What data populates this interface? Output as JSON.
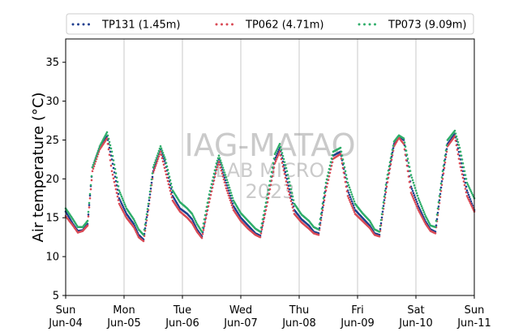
{
  "chart_data": {
    "type": "line",
    "style": "dotted",
    "xlabel": "",
    "ylabel": "Air temperature (°C)",
    "ylim": [
      5,
      38
    ],
    "yticks": [
      5,
      10,
      15,
      20,
      25,
      30,
      35
    ],
    "x_start": "2023-06-04",
    "x_end": "2023-06-11",
    "x_ticks": [
      {
        "day": "Sun",
        "date": "Jun-04"
      },
      {
        "day": "Mon",
        "date": "Jun-05"
      },
      {
        "day": "Tue",
        "date": "Jun-06"
      },
      {
        "day": "Wed",
        "date": "Jun-07"
      },
      {
        "day": "Thu",
        "date": "Jun-08"
      },
      {
        "day": "Fri",
        "date": "Jun-09"
      },
      {
        "day": "Sat",
        "date": "Jun-10"
      },
      {
        "day": "Sun",
        "date": "Jun-11"
      }
    ],
    "grid": "vertical",
    "legend_position": "top",
    "series": [
      {
        "name": "TP131 (1.45m)",
        "color": "#1f3f8f",
        "points": [
          [
            "2023-06-04 00:00",
            15.8
          ],
          [
            "2023-06-04 03:00",
            14.2
          ],
          [
            "2023-06-04 05:00",
            13.3
          ],
          [
            "2023-06-04 07:00",
            13.4
          ],
          [
            "2023-06-04 09:00",
            14.2
          ],
          [
            "2023-06-04 11:00",
            21.5
          ],
          [
            "2023-06-04 14:00",
            24.0
          ],
          [
            "2023-06-04 17:00",
            25.5
          ],
          [
            "2023-06-04 19:00",
            22.5
          ],
          [
            "2023-06-04 22:00",
            17.5
          ],
          [
            "2023-06-05 01:00",
            15.5
          ],
          [
            "2023-06-05 04:00",
            14.2
          ],
          [
            "2023-06-05 06:00",
            12.8
          ],
          [
            "2023-06-05 08:00",
            12.2
          ],
          [
            "2023-06-05 10:00",
            16.5
          ],
          [
            "2023-06-05 12:00",
            21.0
          ],
          [
            "2023-06-05 15:00",
            23.8
          ],
          [
            "2023-06-05 17:00",
            22.0
          ],
          [
            "2023-06-05 20:00",
            17.8
          ],
          [
            "2023-06-05 23:00",
            16.2
          ],
          [
            "2023-06-06 02:00",
            15.5
          ],
          [
            "2023-06-06 04:00",
            14.8
          ],
          [
            "2023-06-06 06:00",
            13.5
          ],
          [
            "2023-06-06 08:00",
            12.6
          ],
          [
            "2023-06-06 11:00",
            17.5
          ],
          [
            "2023-06-06 14:00",
            21.5
          ],
          [
            "2023-06-06 15:00",
            22.5
          ],
          [
            "2023-06-06 18:00",
            19.5
          ],
          [
            "2023-06-06 21:00",
            16.5
          ],
          [
            "2023-06-07 00:00",
            15.0
          ],
          [
            "2023-06-07 03:00",
            14.0
          ],
          [
            "2023-06-07 06:00",
            13.0
          ],
          [
            "2023-06-07 08:00",
            12.7
          ],
          [
            "2023-06-07 11:00",
            17.5
          ],
          [
            "2023-06-07 14:00",
            22.5
          ],
          [
            "2023-06-07 16:00",
            24.0
          ],
          [
            "2023-06-07 19:00",
            20.0
          ],
          [
            "2023-06-07 22:00",
            16.0
          ],
          [
            "2023-06-08 01:00",
            14.8
          ],
          [
            "2023-06-08 04:00",
            14.0
          ],
          [
            "2023-06-08 06:00",
            13.2
          ],
          [
            "2023-06-08 08:00",
            13.0
          ],
          [
            "2023-06-08 11:00",
            19.0
          ],
          [
            "2023-06-08 14:00",
            23.0
          ],
          [
            "2023-06-08 17:00",
            23.5
          ],
          [
            "2023-06-08 20:00",
            18.5
          ],
          [
            "2023-06-08 23:00",
            16.0
          ],
          [
            "2023-06-09 02:00",
            15.0
          ],
          [
            "2023-06-09 05:00",
            14.0
          ],
          [
            "2023-06-09 07:00",
            13.0
          ],
          [
            "2023-06-09 09:00",
            12.8
          ],
          [
            "2023-06-09 12:00",
            19.5
          ],
          [
            "2023-06-09 15:00",
            24.5
          ],
          [
            "2023-06-09 17:00",
            25.5
          ],
          [
            "2023-06-09 19:00",
            25.0
          ],
          [
            "2023-06-09 22:00",
            19.0
          ],
          [
            "2023-06-10 01:00",
            16.5
          ],
          [
            "2023-06-10 04:00",
            14.5
          ],
          [
            "2023-06-10 06:00",
            13.5
          ],
          [
            "2023-06-10 08:00",
            13.2
          ],
          [
            "2023-06-10 11:00",
            20.5
          ],
          [
            "2023-06-10 13:00",
            24.5
          ],
          [
            "2023-06-10 16:00",
            25.8
          ],
          [
            "2023-06-10 18:00",
            23.0
          ],
          [
            "2023-06-10 21:00",
            18.5
          ],
          [
            "2023-06-11 00:00",
            16.0
          ]
        ]
      },
      {
        "name": "TP062 (4.71m)",
        "color": "#d94a55",
        "points": [
          [
            "2023-06-04 00:00",
            15.2
          ],
          [
            "2023-06-04 03:00",
            14.0
          ],
          [
            "2023-06-04 05:00",
            13.1
          ],
          [
            "2023-06-04 07:00",
            13.3
          ],
          [
            "2023-06-04 09:00",
            14.0
          ],
          [
            "2023-06-04 11:00",
            21.0
          ],
          [
            "2023-06-04 14:00",
            23.8
          ],
          [
            "2023-06-04 17:00",
            25.2
          ],
          [
            "2023-06-04 19:00",
            21.0
          ],
          [
            "2023-06-04 22:00",
            16.8
          ],
          [
            "2023-06-05 01:00",
            15.0
          ],
          [
            "2023-06-05 04:00",
            13.8
          ],
          [
            "2023-06-05 06:00",
            12.5
          ],
          [
            "2023-06-05 08:00",
            12.0
          ],
          [
            "2023-06-05 10:00",
            16.0
          ],
          [
            "2023-06-05 12:00",
            20.8
          ],
          [
            "2023-06-05 15:00",
            23.5
          ],
          [
            "2023-06-05 17:00",
            21.0
          ],
          [
            "2023-06-05 20:00",
            17.2
          ],
          [
            "2023-06-05 23:00",
            15.8
          ],
          [
            "2023-06-06 02:00",
            15.0
          ],
          [
            "2023-06-06 04:00",
            14.3
          ],
          [
            "2023-06-06 06:00",
            13.2
          ],
          [
            "2023-06-06 08:00",
            12.4
          ],
          [
            "2023-06-06 11:00",
            17.0
          ],
          [
            "2023-06-06 14:00",
            21.2
          ],
          [
            "2023-06-06 15:00",
            22.2
          ],
          [
            "2023-06-06 18:00",
            18.8
          ],
          [
            "2023-06-06 21:00",
            16.0
          ],
          [
            "2023-06-07 00:00",
            14.6
          ],
          [
            "2023-06-07 03:00",
            13.6
          ],
          [
            "2023-06-07 06:00",
            12.8
          ],
          [
            "2023-06-07 08:00",
            12.5
          ],
          [
            "2023-06-07 11:00",
            17.0
          ],
          [
            "2023-06-07 14:00",
            22.0
          ],
          [
            "2023-06-07 16:00",
            23.5
          ],
          [
            "2023-06-07 19:00",
            19.2
          ],
          [
            "2023-06-07 22:00",
            15.5
          ],
          [
            "2023-06-08 01:00",
            14.4
          ],
          [
            "2023-06-08 04:00",
            13.6
          ],
          [
            "2023-06-08 06:00",
            13.0
          ],
          [
            "2023-06-08 08:00",
            12.8
          ],
          [
            "2023-06-08 11:00",
            18.5
          ],
          [
            "2023-06-08 14:00",
            22.6
          ],
          [
            "2023-06-08 17:00",
            23.2
          ],
          [
            "2023-06-08 20:00",
            17.8
          ],
          [
            "2023-06-08 23:00",
            15.5
          ],
          [
            "2023-06-09 02:00",
            14.6
          ],
          [
            "2023-06-09 05:00",
            13.7
          ],
          [
            "2023-06-09 07:00",
            12.8
          ],
          [
            "2023-06-09 09:00",
            12.6
          ],
          [
            "2023-06-09 12:00",
            19.0
          ],
          [
            "2023-06-09 15:00",
            24.2
          ],
          [
            "2023-06-09 17:00",
            25.3
          ],
          [
            "2023-06-09 19:00",
            24.5
          ],
          [
            "2023-06-09 22:00",
            18.2
          ],
          [
            "2023-06-10 01:00",
            16.0
          ],
          [
            "2023-06-10 04:00",
            14.2
          ],
          [
            "2023-06-10 06:00",
            13.3
          ],
          [
            "2023-06-10 08:00",
            13.0
          ],
          [
            "2023-06-10 11:00",
            20.0
          ],
          [
            "2023-06-10 13:00",
            24.2
          ],
          [
            "2023-06-10 16:00",
            25.5
          ],
          [
            "2023-06-10 18:00",
            22.0
          ],
          [
            "2023-06-10 21:00",
            17.8
          ],
          [
            "2023-06-11 00:00",
            15.8
          ]
        ]
      },
      {
        "name": "TP073 (9.09m)",
        "color": "#2fae6a",
        "points": [
          [
            "2023-06-04 00:00",
            16.2
          ],
          [
            "2023-06-04 03:00",
            14.8
          ],
          [
            "2023-06-04 05:00",
            13.8
          ],
          [
            "2023-06-04 07:00",
            13.8
          ],
          [
            "2023-06-04 09:00",
            14.6
          ],
          [
            "2023-06-04 11:00",
            21.5
          ],
          [
            "2023-06-04 14:00",
            24.2
          ],
          [
            "2023-06-04 17:00",
            26.0
          ],
          [
            "2023-06-04 19:00",
            23.5
          ],
          [
            "2023-06-04 22:00",
            18.5
          ],
          [
            "2023-06-05 01:00",
            16.2
          ],
          [
            "2023-06-05 04:00",
            14.8
          ],
          [
            "2023-06-05 06:00",
            13.5
          ],
          [
            "2023-06-05 08:00",
            12.8
          ],
          [
            "2023-06-05 10:00",
            16.8
          ],
          [
            "2023-06-05 12:00",
            21.5
          ],
          [
            "2023-06-05 15:00",
            24.2
          ],
          [
            "2023-06-05 17:00",
            22.5
          ],
          [
            "2023-06-05 20:00",
            18.5
          ],
          [
            "2023-06-05 23:00",
            17.0
          ],
          [
            "2023-06-06 02:00",
            16.2
          ],
          [
            "2023-06-06 04:00",
            15.5
          ],
          [
            "2023-06-06 06:00",
            14.2
          ],
          [
            "2023-06-06 08:00",
            13.2
          ],
          [
            "2023-06-06 11:00",
            18.0
          ],
          [
            "2023-06-06 14:00",
            22.0
          ],
          [
            "2023-06-06 15:00",
            23.0
          ],
          [
            "2023-06-06 18:00",
            20.2
          ],
          [
            "2023-06-06 21:00",
            17.2
          ],
          [
            "2023-06-07 00:00",
            15.6
          ],
          [
            "2023-06-07 03:00",
            14.6
          ],
          [
            "2023-06-07 06:00",
            13.6
          ],
          [
            "2023-06-07 08:00",
            13.2
          ],
          [
            "2023-06-07 11:00",
            18.0
          ],
          [
            "2023-06-07 14:00",
            23.2
          ],
          [
            "2023-06-07 16:00",
            24.5
          ],
          [
            "2023-06-07 19:00",
            21.0
          ],
          [
            "2023-06-07 22:00",
            16.8
          ],
          [
            "2023-06-08 01:00",
            15.4
          ],
          [
            "2023-06-08 04:00",
            14.6
          ],
          [
            "2023-06-08 06:00",
            13.8
          ],
          [
            "2023-06-08 08:00",
            13.5
          ],
          [
            "2023-06-08 11:00",
            19.5
          ],
          [
            "2023-06-08 14:00",
            23.5
          ],
          [
            "2023-06-08 17:00",
            24.0
          ],
          [
            "2023-06-08 20:00",
            19.5
          ],
          [
            "2023-06-08 23:00",
            16.8
          ],
          [
            "2023-06-09 02:00",
            15.6
          ],
          [
            "2023-06-09 05:00",
            14.6
          ],
          [
            "2023-06-09 07:00",
            13.5
          ],
          [
            "2023-06-09 09:00",
            13.2
          ],
          [
            "2023-06-09 12:00",
            20.0
          ],
          [
            "2023-06-09 15:00",
            24.8
          ],
          [
            "2023-06-09 17:00",
            25.6
          ],
          [
            "2023-06-09 19:00",
            25.2
          ],
          [
            "2023-06-09 22:00",
            20.5
          ],
          [
            "2023-06-10 01:00",
            17.5
          ],
          [
            "2023-06-10 04:00",
            15.2
          ],
          [
            "2023-06-10 06:00",
            14.0
          ],
          [
            "2023-06-10 08:00",
            13.8
          ],
          [
            "2023-06-10 11:00",
            21.0
          ],
          [
            "2023-06-10 13:00",
            25.0
          ],
          [
            "2023-06-10 16:00",
            26.2
          ],
          [
            "2023-06-10 18:00",
            24.0
          ],
          [
            "2023-06-10 21:00",
            19.5
          ],
          [
            "2023-06-11 00:00",
            17.5
          ]
        ]
      }
    ]
  },
  "watermark": {
    "line1": "IAG-MATAO",
    "line2": "LAB MICRO",
    "line3": "2023"
  }
}
